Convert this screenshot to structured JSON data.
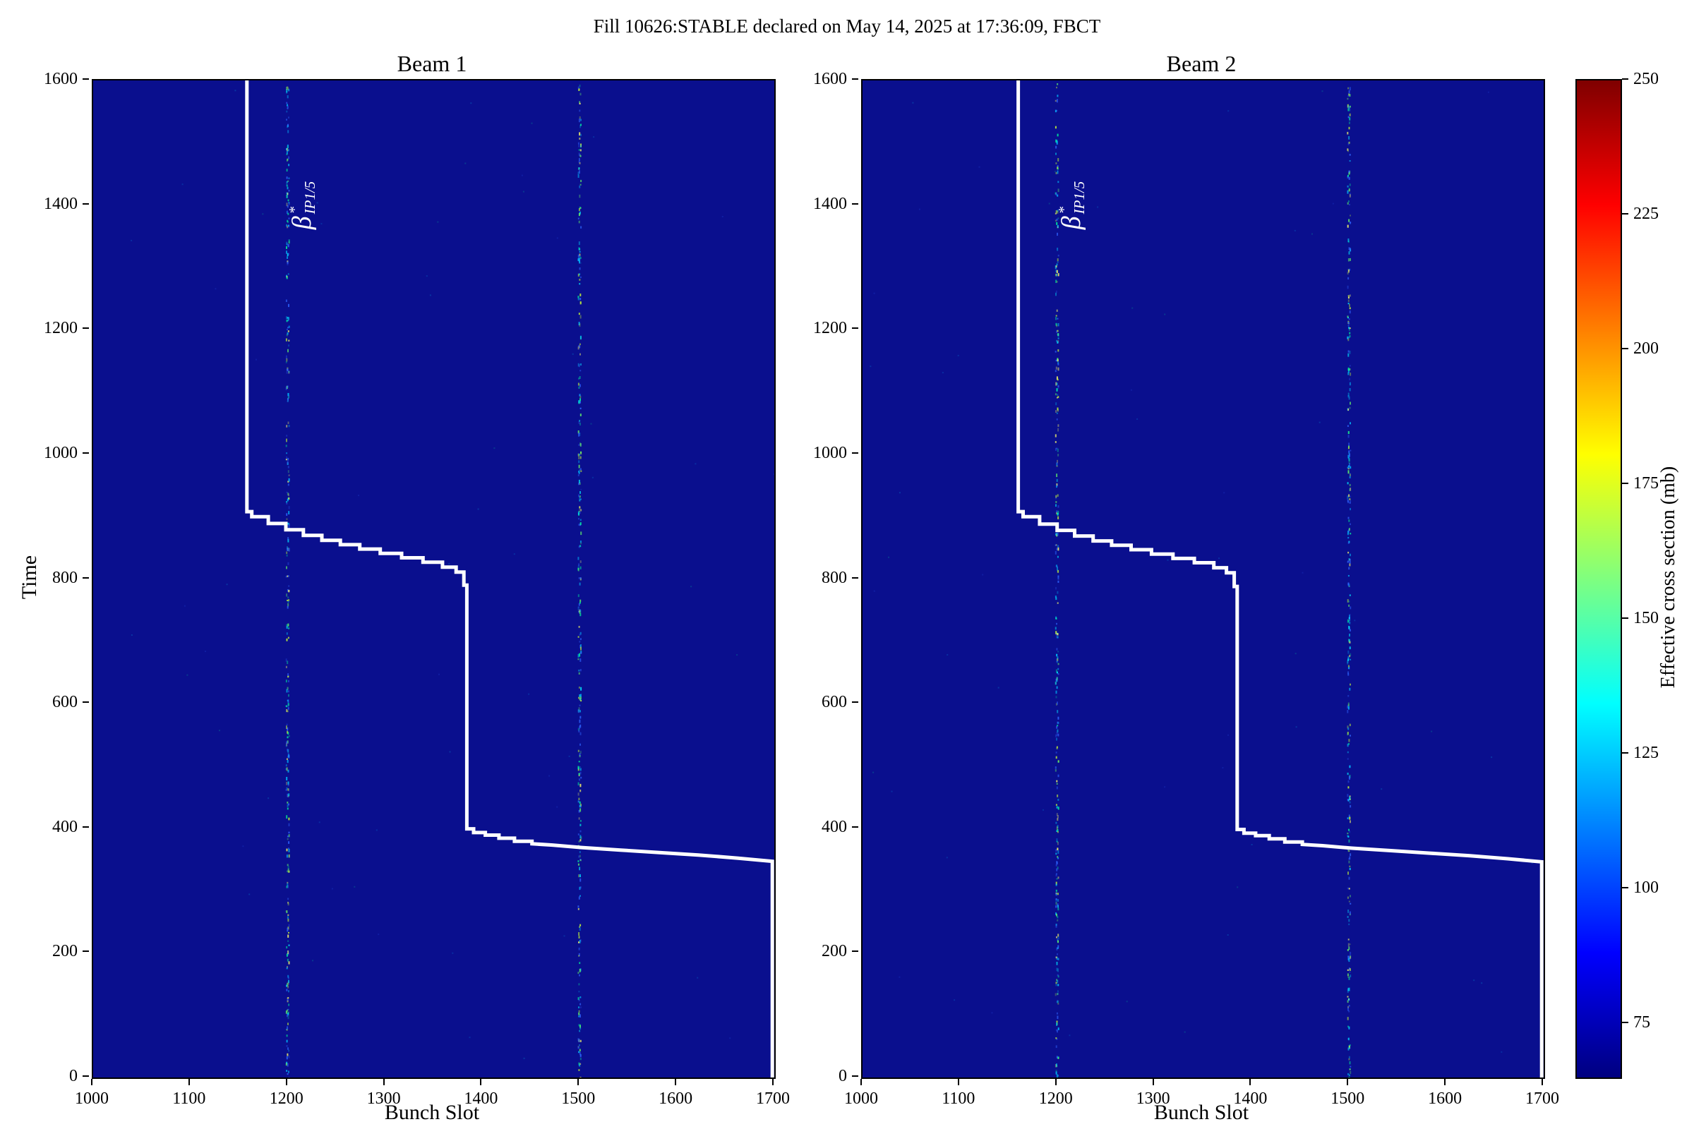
{
  "title": "Fill 10626:STABLE declared on May 14, 2025 at 17:36:09, FBCT",
  "colors": {
    "heatmap_bg": "#0a0f8e",
    "curve": "#ffffff",
    "annotation": "#ffffff",
    "axis": "#000000",
    "speckle_palette": [
      "#2e64fe",
      "#00bfff",
      "#00e5ff",
      "#00fa9a",
      "#66ff66",
      "#ccff33",
      "#ffff66"
    ]
  },
  "chart_data": [
    {
      "type": "heatmap",
      "title": "Beam 1",
      "xlabel": "Bunch Slot",
      "ylabel": "Time",
      "xlim": [
        1000,
        1700
      ],
      "ylim": [
        0,
        1600
      ],
      "xticks": [
        1000,
        1100,
        1200,
        1300,
        1400,
        1500,
        1600,
        1700
      ],
      "yticks": [
        0,
        200,
        400,
        600,
        800,
        1000,
        1200,
        1400,
        1600
      ],
      "background_value_note": "uniform low effective cross section (~65-70 mb) rendered dark blue",
      "annotation": {
        "base": "β",
        "sup": "*",
        "sub": "IP1/5",
        "x": 1215,
        "y": 1400
      },
      "speckle_columns": [
        1200,
        1500
      ],
      "curve_series_name": "beta-star IP1/5 step boundary",
      "curve_points": [
        [
          1158,
          1600
        ],
        [
          1158,
          908
        ],
        [
          1163,
          908
        ],
        [
          1163,
          900
        ],
        [
          1180,
          900
        ],
        [
          1180,
          889
        ],
        [
          1198,
          889
        ],
        [
          1198,
          879
        ],
        [
          1216,
          879
        ],
        [
          1216,
          870
        ],
        [
          1235,
          870
        ],
        [
          1235,
          862
        ],
        [
          1254,
          862
        ],
        [
          1254,
          855
        ],
        [
          1274,
          855
        ],
        [
          1274,
          848
        ],
        [
          1295,
          848
        ],
        [
          1295,
          841
        ],
        [
          1317,
          841
        ],
        [
          1317,
          834
        ],
        [
          1339,
          834
        ],
        [
          1339,
          827
        ],
        [
          1359,
          827
        ],
        [
          1359,
          819
        ],
        [
          1373,
          819
        ],
        [
          1373,
          811
        ],
        [
          1381,
          811
        ],
        [
          1381,
          790
        ],
        [
          1384,
          790
        ],
        [
          1384,
          399
        ],
        [
          1391,
          399
        ],
        [
          1391,
          393
        ],
        [
          1403,
          393
        ],
        [
          1403,
          389
        ],
        [
          1417,
          389
        ],
        [
          1417,
          384
        ],
        [
          1433,
          384
        ],
        [
          1433,
          379
        ],
        [
          1451,
          379
        ],
        [
          1451,
          375
        ],
        [
          1472,
          373
        ],
        [
          1502,
          369
        ],
        [
          1542,
          365
        ],
        [
          1582,
          361
        ],
        [
          1622,
          357
        ],
        [
          1662,
          352
        ],
        [
          1698,
          347
        ],
        [
          1698,
          0
        ]
      ]
    },
    {
      "type": "heatmap",
      "title": "Beam 2",
      "xlabel": "Bunch Slot",
      "ylabel": "Time",
      "xlim": [
        1000,
        1700
      ],
      "ylim": [
        0,
        1600
      ],
      "xticks": [
        1000,
        1100,
        1200,
        1300,
        1400,
        1500,
        1600,
        1700
      ],
      "yticks": [
        0,
        200,
        400,
        600,
        800,
        1000,
        1200,
        1400,
        1600
      ],
      "background_value_note": "uniform low effective cross section (~65-70 mb) rendered dark blue",
      "annotation": {
        "base": "β",
        "sup": "*",
        "sub": "IP1/5",
        "x": 1215,
        "y": 1400
      },
      "speckle_columns": [
        1200,
        1500
      ],
      "curve_series_name": "beta-star IP1/5 step boundary",
      "curve_points": [
        [
          1160,
          1600
        ],
        [
          1160,
          908
        ],
        [
          1165,
          908
        ],
        [
          1165,
          900
        ],
        [
          1182,
          900
        ],
        [
          1182,
          888
        ],
        [
          1200,
          888
        ],
        [
          1200,
          878
        ],
        [
          1218,
          878
        ],
        [
          1218,
          869
        ],
        [
          1237,
          869
        ],
        [
          1237,
          861
        ],
        [
          1256,
          861
        ],
        [
          1256,
          854
        ],
        [
          1276,
          854
        ],
        [
          1276,
          847
        ],
        [
          1297,
          847
        ],
        [
          1297,
          840
        ],
        [
          1319,
          840
        ],
        [
          1319,
          833
        ],
        [
          1341,
          833
        ],
        [
          1341,
          826
        ],
        [
          1361,
          826
        ],
        [
          1361,
          818
        ],
        [
          1374,
          818
        ],
        [
          1374,
          810
        ],
        [
          1382,
          810
        ],
        [
          1382,
          788
        ],
        [
          1385,
          788
        ],
        [
          1385,
          398
        ],
        [
          1392,
          398
        ],
        [
          1392,
          392
        ],
        [
          1404,
          392
        ],
        [
          1404,
          388
        ],
        [
          1418,
          388
        ],
        [
          1418,
          383
        ],
        [
          1434,
          383
        ],
        [
          1434,
          378
        ],
        [
          1452,
          378
        ],
        [
          1452,
          374
        ],
        [
          1473,
          372
        ],
        [
          1503,
          368
        ],
        [
          1543,
          364
        ],
        [
          1583,
          360
        ],
        [
          1623,
          356
        ],
        [
          1663,
          351
        ],
        [
          1698,
          346
        ],
        [
          1698,
          0
        ]
      ]
    }
  ],
  "colorbar": {
    "label": "Effective cross section (mb)",
    "ticks": [
      75,
      100,
      125,
      150,
      175,
      200,
      225,
      250
    ],
    "vmin": 65,
    "vmax": 250,
    "colormap": "jet"
  }
}
